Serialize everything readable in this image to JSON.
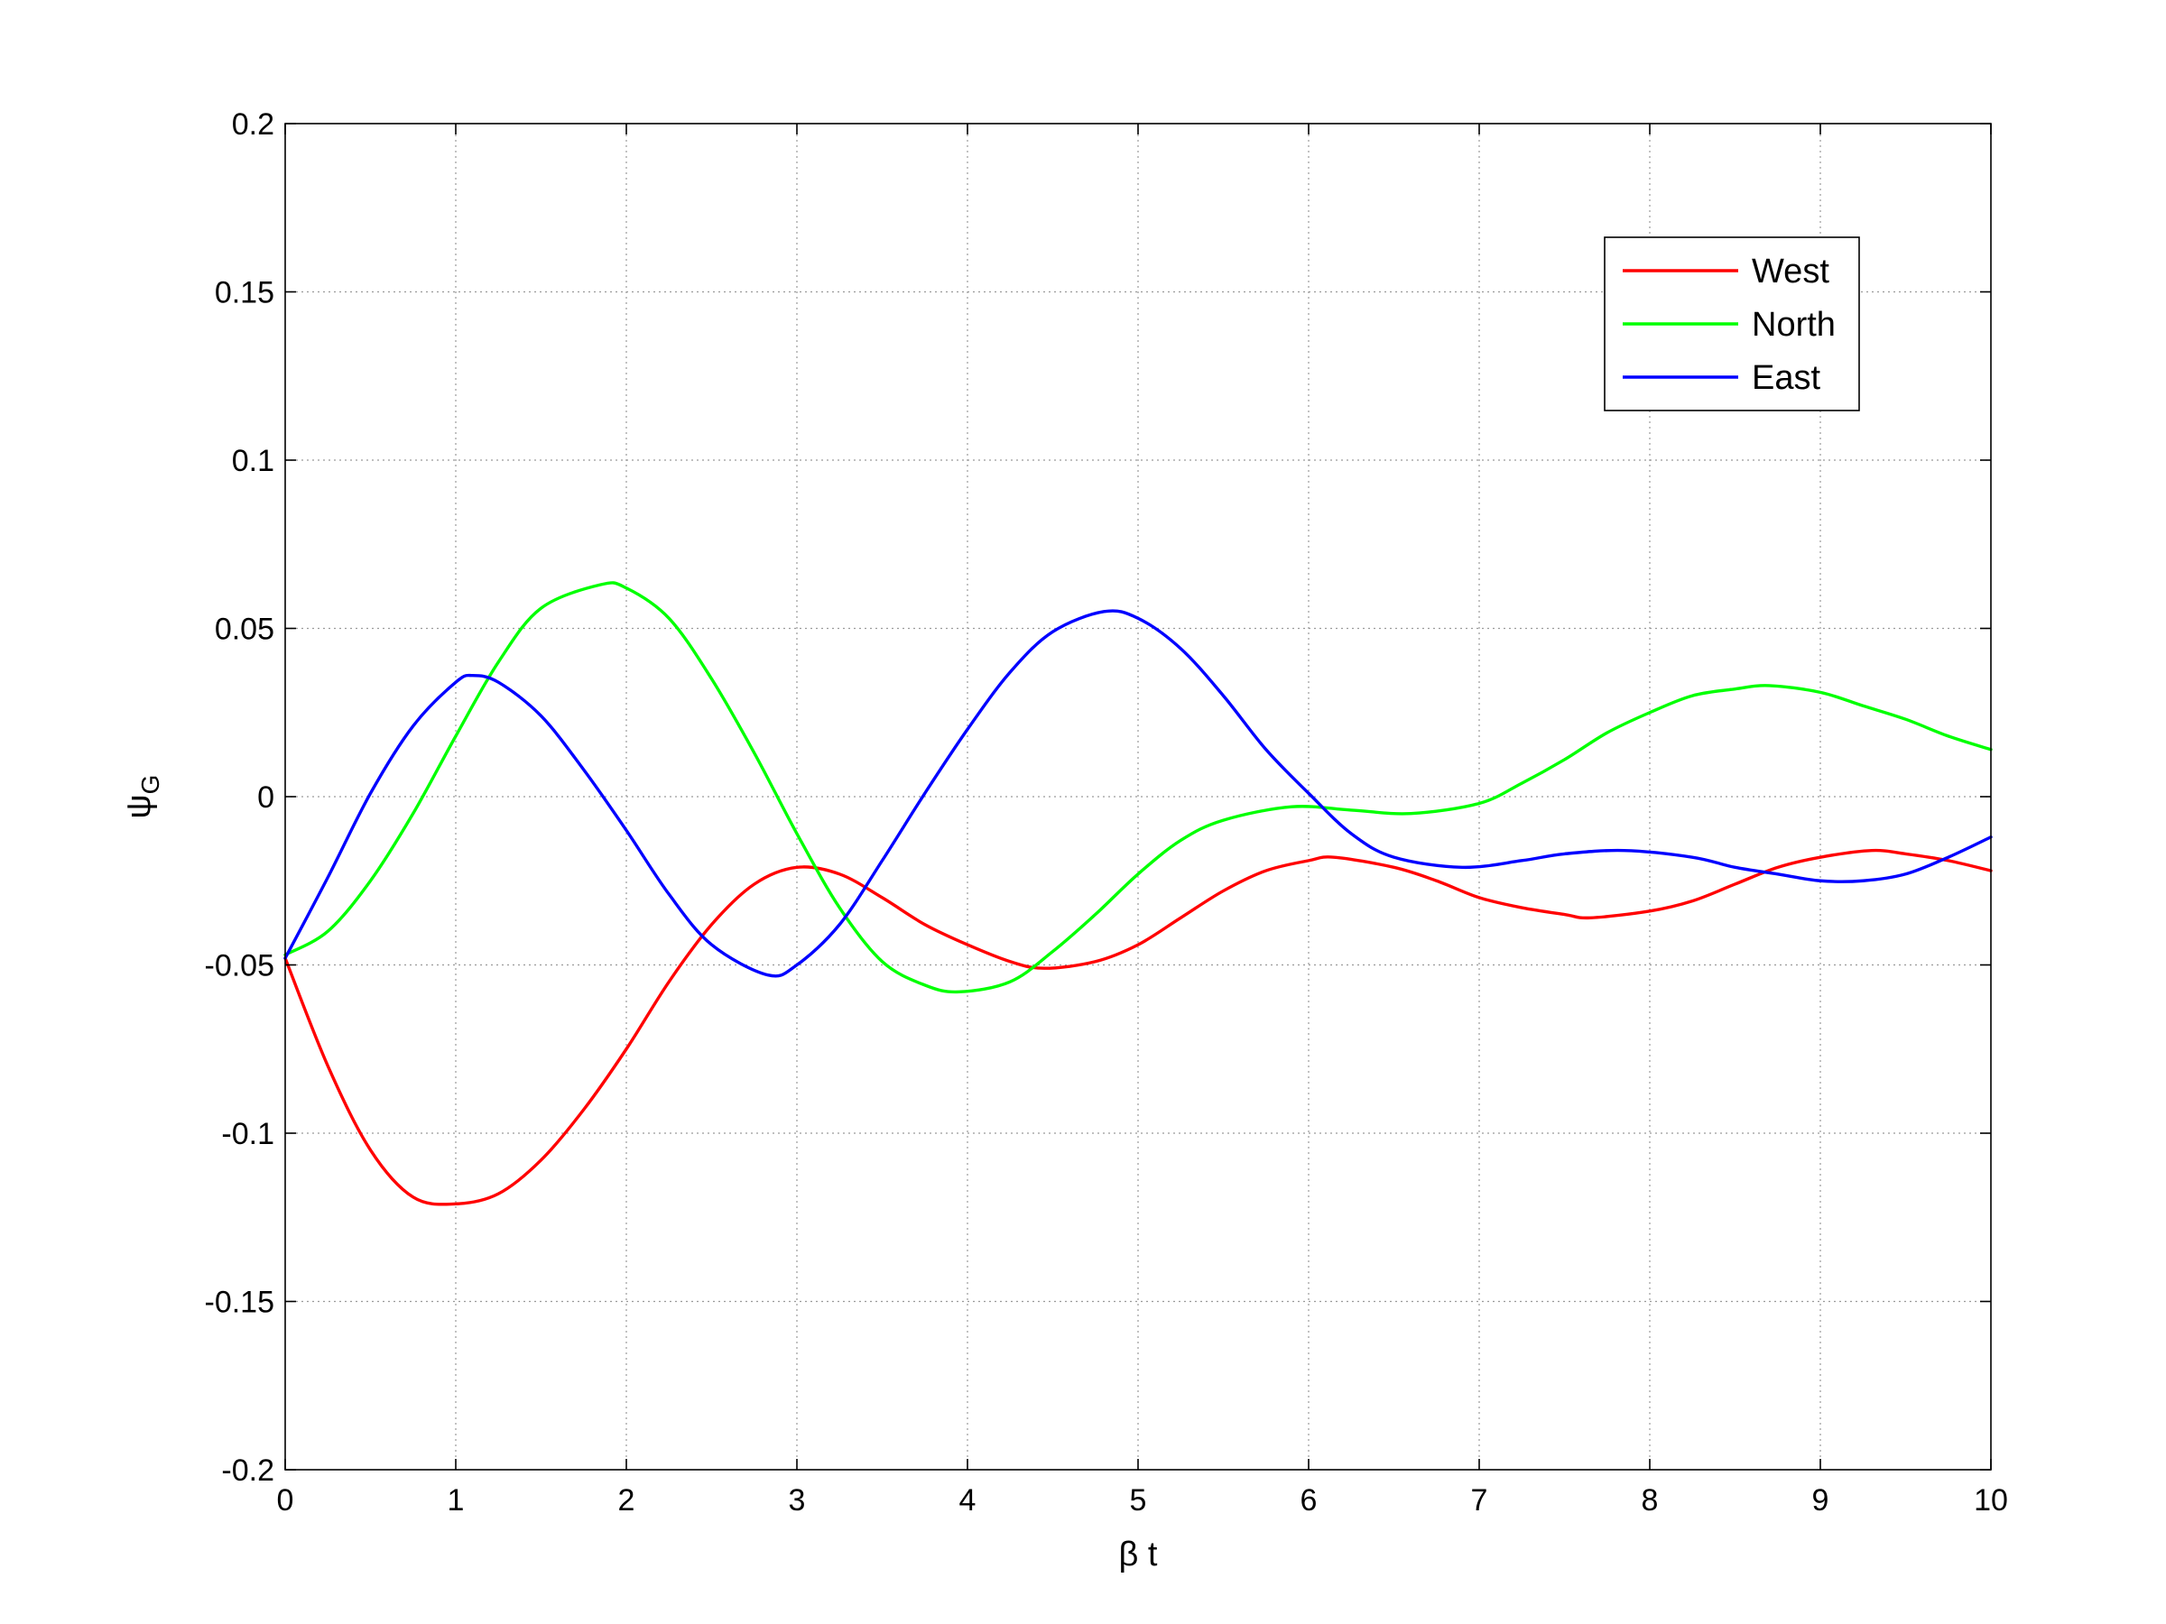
{
  "chart_data": {
    "type": "line",
    "title": "",
    "xlabel": "β t",
    "ylabel": {
      "main": "ψ",
      "sub": "G"
    },
    "xlim": [
      0,
      10
    ],
    "ylim": [
      -0.2,
      0.2
    ],
    "xticks": [
      0,
      1,
      2,
      3,
      4,
      5,
      6,
      7,
      8,
      9,
      10
    ],
    "yticks": [
      -0.2,
      -0.15,
      -0.1,
      -0.05,
      0,
      0.05,
      0.1,
      0.15,
      0.2
    ],
    "xtick_labels": [
      "0",
      "1",
      "2",
      "3",
      "4",
      "5",
      "6",
      "7",
      "8",
      "9",
      "10"
    ],
    "ytick_labels": [
      "-0.2",
      "-0.15",
      "-0.1",
      "-0.05",
      "0",
      "0.05",
      "0.1",
      "0.15",
      "0.2"
    ],
    "grid": true,
    "legend_position": "top-right",
    "series": [
      {
        "name": "West",
        "color": "#ff0000",
        "x": [
          0,
          0.25,
          0.5,
          0.75,
          1.0,
          1.25,
          1.5,
          1.75,
          2.0,
          2.25,
          2.5,
          2.75,
          3.0,
          3.25,
          3.5,
          3.75,
          4.0,
          4.25,
          4.45,
          4.75,
          5.0,
          5.25,
          5.5,
          5.75,
          6.0,
          6.15,
          6.5,
          6.75,
          7.0,
          7.25,
          7.5,
          7.65,
          8.0,
          8.25,
          8.5,
          8.75,
          9.0,
          9.3,
          9.5,
          9.75,
          10.0
        ],
        "y": [
          -0.048,
          -0.08,
          -0.105,
          -0.119,
          -0.121,
          -0.118,
          -0.108,
          -0.093,
          -0.075,
          -0.055,
          -0.038,
          -0.026,
          -0.021,
          -0.023,
          -0.03,
          -0.038,
          -0.044,
          -0.049,
          -0.051,
          -0.049,
          -0.044,
          -0.036,
          -0.028,
          -0.022,
          -0.019,
          -0.018,
          -0.021,
          -0.025,
          -0.03,
          -0.033,
          -0.035,
          -0.036,
          -0.034,
          -0.031,
          -0.026,
          -0.021,
          -0.018,
          -0.016,
          -0.017,
          -0.019,
          -0.022
        ]
      },
      {
        "name": "North",
        "color": "#00ff00",
        "x": [
          0,
          0.25,
          0.5,
          0.75,
          1.0,
          1.25,
          1.5,
          1.85,
          2.0,
          2.25,
          2.5,
          2.75,
          3.0,
          3.25,
          3.5,
          3.75,
          3.95,
          4.25,
          4.5,
          4.75,
          5.0,
          5.25,
          5.5,
          5.9,
          6.25,
          6.6,
          7.0,
          7.25,
          7.5,
          7.75,
          8.0,
          8.25,
          8.5,
          8.7,
          9.0,
          9.25,
          9.5,
          9.75,
          10.0
        ],
        "y": [
          -0.047,
          -0.04,
          -0.025,
          -0.005,
          0.018,
          0.04,
          0.056,
          0.063,
          0.062,
          0.053,
          0.035,
          0.013,
          -0.011,
          -0.033,
          -0.049,
          -0.056,
          -0.058,
          -0.055,
          -0.046,
          -0.035,
          -0.023,
          -0.013,
          -0.007,
          -0.003,
          -0.004,
          -0.005,
          -0.002,
          0.004,
          0.011,
          0.019,
          0.025,
          0.03,
          0.032,
          0.033,
          0.031,
          0.027,
          0.023,
          0.018,
          0.014
        ]
      },
      {
        "name": "East",
        "color": "#0000ff",
        "x": [
          0,
          0.25,
          0.5,
          0.75,
          1.0,
          1.1,
          1.25,
          1.5,
          1.75,
          2.0,
          2.25,
          2.5,
          2.83,
          3.0,
          3.25,
          3.5,
          3.75,
          4.0,
          4.25,
          4.5,
          4.8,
          5.0,
          5.25,
          5.5,
          5.75,
          6.0,
          6.25,
          6.5,
          6.9,
          7.25,
          7.5,
          7.85,
          8.25,
          8.5,
          8.75,
          9.0,
          9.25,
          9.5,
          9.75,
          10.0
        ],
        "y": [
          -0.048,
          -0.024,
          0.001,
          0.021,
          0.034,
          0.036,
          0.034,
          0.024,
          0.008,
          -0.01,
          -0.029,
          -0.044,
          -0.053,
          -0.05,
          -0.038,
          -0.019,
          0.001,
          0.02,
          0.037,
          0.049,
          0.055,
          0.053,
          0.044,
          0.03,
          0.014,
          0.001,
          -0.011,
          -0.018,
          -0.021,
          -0.019,
          -0.017,
          -0.016,
          -0.018,
          -0.021,
          -0.023,
          -0.025,
          -0.025,
          -0.023,
          -0.018,
          -0.012
        ]
      }
    ]
  }
}
